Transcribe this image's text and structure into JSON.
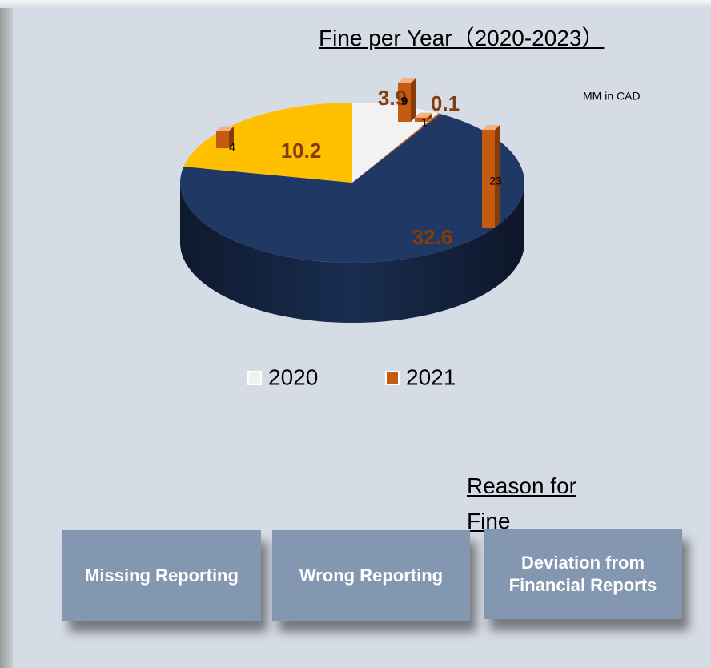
{
  "chart_data": {
    "type": "pie",
    "title": "Fine per Year（2020-2023）",
    "note": "MM in CAD",
    "slice_colors": [
      "#f2f2f2",
      "#c55a11",
      "#1f3864",
      "#ffc000"
    ],
    "series": [
      {
        "name": "2020",
        "color": "#f2f2f2",
        "values": [
          3.9,
          0.1,
          32.6,
          10.2
        ]
      },
      {
        "name": "2021",
        "color": "#c55a11",
        "values": [
          9,
          1,
          23,
          4
        ]
      }
    ]
  },
  "reasons": {
    "title": "Reason for Fine",
    "items": [
      "Missing Reporting",
      "Wrong Reporting",
      "Deviation from Financial Reports"
    ]
  }
}
